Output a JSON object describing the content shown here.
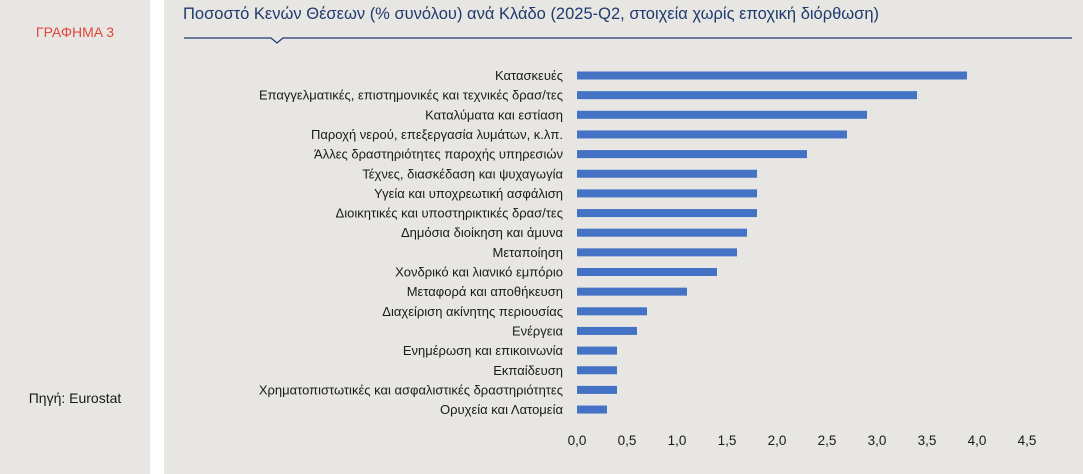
{
  "sidebar": {
    "figure_label": "ΓΡΑΦΗΜΑ 3",
    "source": "Πηγή: Eurostat"
  },
  "colors": {
    "bar": "#4472c4",
    "title": "#1f3a6e",
    "figure_label": "#e2463a",
    "panel_bg": "#e7e6e3"
  },
  "chart_data": {
    "type": "bar",
    "orientation": "horizontal",
    "title": "Ποσοστό Κενών Θέσεων (% συνόλου) ανά Κλάδο (2025-Q2, στοιχεία χωρίς εποχική διόρθωση)",
    "xlabel": "",
    "ylabel": "",
    "categories": [
      "Κατασκευές",
      "Επαγγελματικές, επιστημονικές και τεχνικές δρασ/τες",
      "Καταλύματα και εστίαση",
      "Παροχή νερού, επεξεργασία λυμάτων, κ.λπ.",
      "Άλλες δραστηριότητες παροχής υπηρεσιών",
      "Τέχνες, διασκέδαση και ψυχαγωγία",
      "Υγεία και υποχρεωτική ασφάλιση",
      "Διοικητικές και υποστηρικτικές δρασ/τες",
      "Δημόσια διοίκηση και άμυνα",
      "Μεταποίηση",
      "Χονδρικό και λιανικό εμπόριο",
      "Μεταφορά και αποθήκευση",
      "Διαχείριση ακίνητης περιουσίας",
      "Ενέργεια",
      "Ενημέρωση και επικοινωνία",
      "Εκπαίδευση",
      "Χρηματοπιστωτικές και ασφαλιστικές δραστηριότητες",
      "Ορυχεία και Λατομεία"
    ],
    "values": [
      3.9,
      3.4,
      2.9,
      2.7,
      2.3,
      1.8,
      1.8,
      1.8,
      1.7,
      1.6,
      1.4,
      1.1,
      0.7,
      0.6,
      0.4,
      0.4,
      0.4,
      0.3
    ],
    "xlim": [
      0,
      4.5
    ],
    "ticks": [
      "0,0",
      "0,5",
      "1,0",
      "1,5",
      "2,0",
      "2,5",
      "3,0",
      "3,5",
      "4,0",
      "4,5"
    ],
    "tick_values": [
      0,
      0.5,
      1.0,
      1.5,
      2.0,
      2.5,
      3.0,
      3.5,
      4.0,
      4.5
    ],
    "grid": false,
    "legend": "none"
  }
}
